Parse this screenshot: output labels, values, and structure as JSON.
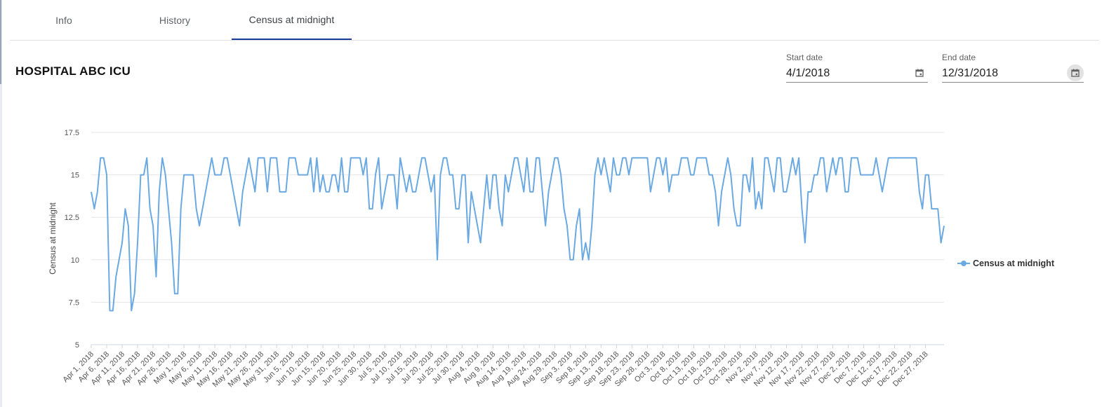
{
  "tabs": [
    {
      "label": "Info",
      "active": false
    },
    {
      "label": "History",
      "active": false
    },
    {
      "label": "Census at midnight",
      "active": true
    }
  ],
  "title": "HOSPITAL ABC ICU",
  "start_date": {
    "label": "Start date",
    "value": "4/1/2018"
  },
  "end_date": {
    "label": "End date",
    "value": "12/31/2018"
  },
  "icons": {
    "calendar": "calendar-icon"
  },
  "colors": {
    "series": "#6ba9e2",
    "tab_indicator": "#1a3a9c",
    "grid": "#e6e6e6"
  },
  "legend": {
    "label": "Census at midnight",
    "placement": "right"
  },
  "chart_data": {
    "type": "line",
    "ylabel": "Census at midnight",
    "xlabel": "",
    "ylim": [
      5,
      17.5
    ],
    "yticks": [
      5,
      7.5,
      10,
      12.5,
      15,
      17.5
    ],
    "grid": true,
    "x_start": "2018-04-01",
    "x_end": "2018-12-31",
    "xticks": [
      "Apr 1, 2018",
      "Apr 6, 2018",
      "Apr 11, 2018",
      "Apr 16, 2018",
      "Apr 21, 2018",
      "Apr 26, 2018",
      "May 1, 2018",
      "May 6, 2018",
      "May 11, 2018",
      "May 16, 2018",
      "May 21, 2018",
      "May 26, 2018",
      "May 31, 2018",
      "Jun 5, 2018",
      "Jun 10, 2018",
      "Jun 15, 2018",
      "Jun 20, 2018",
      "Jun 25, 2018",
      "Jun 30, 2018",
      "Jul 5, 2018",
      "Jul 10, 2018",
      "Jul 15, 2018",
      "Jul 20, 2018",
      "Jul 25, 2018",
      "Jul 30, 2018",
      "Aug 4, 2018",
      "Aug 9, 2018",
      "Aug 14, 2018",
      "Aug 19, 2018",
      "Aug 24, 2018",
      "Aug 29, 2018",
      "Sep 3, 2018",
      "Sep 8, 2018",
      "Sep 13, 2018",
      "Sep 18, 2018",
      "Sep 23, 2018",
      "Sep 28, 2018",
      "Oct 3, 2018",
      "Oct 8, 2018",
      "Oct 13, 2018",
      "Oct 18, 2018",
      "Oct 23, 2018",
      "Oct 28, 2018",
      "Nov 2, 2018",
      "Nov 7, 2018",
      "Nov 12, 2018",
      "Nov 17, 2018",
      "Nov 22, 2018",
      "Nov 27, 2018",
      "Dec 2, 2018",
      "Dec 7, 2018",
      "Dec 12, 2018",
      "Dec 17, 2018",
      "Dec 22, 2018",
      "Dec 27, 2018"
    ],
    "series": [
      {
        "name": "Census at midnight",
        "values": [
          14,
          13,
          14,
          16,
          16,
          15,
          7,
          7,
          9,
          10,
          11,
          13,
          12,
          7,
          8,
          11,
          15,
          15,
          16,
          13,
          12,
          9,
          14,
          16,
          15,
          13,
          11,
          8,
          8,
          13,
          15,
          15,
          15,
          15,
          13,
          12,
          13,
          14,
          15,
          16,
          15,
          15,
          15,
          16,
          16,
          15,
          14,
          13,
          12,
          14,
          15,
          16,
          15,
          14,
          16,
          16,
          16,
          14,
          16,
          16,
          16,
          14,
          14,
          14,
          16,
          16,
          16,
          15,
          15,
          15,
          15,
          16,
          14,
          16,
          14,
          15,
          14,
          14,
          15,
          15,
          14,
          16,
          14,
          14,
          16,
          16,
          16,
          16,
          15,
          16,
          13,
          13,
          15,
          16,
          13,
          14,
          15,
          15,
          15,
          13,
          16,
          15,
          14,
          15,
          14,
          14,
          15,
          16,
          16,
          15,
          14,
          15,
          10,
          15,
          16,
          16,
          15,
          15,
          13,
          13,
          15,
          15,
          11,
          14,
          13,
          12,
          11,
          13,
          15,
          13,
          15,
          15,
          13,
          12,
          15,
          14,
          15,
          16,
          16,
          15,
          14,
          16,
          14,
          14,
          16,
          16,
          14,
          12,
          14,
          15,
          16,
          16,
          15,
          13,
          12,
          10,
          10,
          12,
          13,
          10,
          11,
          10,
          12,
          15,
          16,
          15,
          16,
          15,
          14,
          16,
          15,
          15,
          16,
          16,
          15,
          16,
          16,
          16,
          16,
          16,
          16,
          14,
          15,
          16,
          16,
          15,
          16,
          14,
          15,
          15,
          15,
          16,
          16,
          16,
          15,
          15,
          16,
          16,
          16,
          16,
          15,
          15,
          14,
          12,
          14,
          15,
          16,
          15,
          13,
          12,
          12,
          15,
          15,
          14,
          16,
          13,
          14,
          13,
          16,
          16,
          15,
          14,
          16,
          16,
          14,
          14,
          15,
          16,
          15,
          16,
          13,
          11,
          14,
          14,
          15,
          15,
          16,
          16,
          14,
          15,
          16,
          15,
          16,
          16,
          14,
          14,
          16,
          16,
          16,
          15,
          15,
          15,
          15,
          15,
          16,
          15,
          14,
          15,
          16,
          16,
          16,
          16,
          16,
          16,
          16,
          16,
          16,
          16,
          14,
          13,
          15,
          15,
          13,
          13,
          13,
          11,
          12
        ]
      }
    ]
  }
}
